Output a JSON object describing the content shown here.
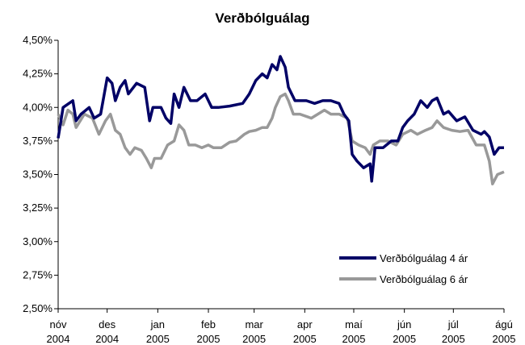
{
  "chart_data": {
    "type": "line",
    "title": "Verðbólguálag",
    "xlim": [
      0,
      273
    ],
    "xticks": [
      {
        "value": 0,
        "label": "nóv 2004"
      },
      {
        "value": 30,
        "label": "des 2004"
      },
      {
        "value": 61,
        "label": "jan 2005"
      },
      {
        "value": 92,
        "label": "feb 2005"
      },
      {
        "value": 120,
        "label": "mar 2005"
      },
      {
        "value": 151,
        "label": "apr 2005"
      },
      {
        "value": 181,
        "label": "maí 2005"
      },
      {
        "value": 212,
        "label": "jún 2005"
      },
      {
        "value": 242,
        "label": "júl 2005"
      },
      {
        "value": 273,
        "label": "ágú 2005"
      }
    ],
    "ylim": [
      2.5,
      4.5
    ],
    "yticks": [
      {
        "value": 2.5,
        "label": "2,50%"
      },
      {
        "value": 2.75,
        "label": "2,75%"
      },
      {
        "value": 3.0,
        "label": "3,00%"
      },
      {
        "value": 3.25,
        "label": "3,25%"
      },
      {
        "value": 3.5,
        "label": "3,50%"
      },
      {
        "value": 3.75,
        "label": "3,75%"
      },
      {
        "value": 4.0,
        "label": "4,00%"
      },
      {
        "value": 4.25,
        "label": "4,25%"
      },
      {
        "value": 4.5,
        "label": "4,50%"
      }
    ],
    "grid": false,
    "legend": "lower right",
    "series": [
      {
        "name": "Verðbólguálag 4 ár",
        "color": "#000066",
        "x": [
          0,
          3,
          9,
          11,
          14,
          19,
          22,
          26,
          30,
          33,
          35,
          38,
          41,
          43,
          48,
          53,
          56,
          58,
          63,
          66,
          69,
          71,
          74,
          77,
          81,
          85,
          90,
          94,
          98,
          105,
          113,
          117,
          121,
          125,
          128,
          131,
          134,
          136,
          139,
          141,
          145,
          152,
          157,
          162,
          167,
          172,
          175,
          178,
          180,
          183,
          187,
          191,
          192,
          194,
          199,
          204,
          208,
          211,
          214,
          218,
          222,
          226,
          229,
          232,
          236,
          239,
          244,
          249,
          254,
          259,
          261,
          264,
          267,
          270,
          273
        ],
        "values": [
          3.77,
          4.0,
          4.05,
          3.9,
          3.95,
          4.0,
          3.92,
          3.95,
          4.22,
          4.18,
          4.05,
          4.15,
          4.2,
          4.1,
          4.18,
          4.15,
          3.9,
          4.0,
          4.0,
          3.92,
          3.88,
          4.1,
          4.0,
          4.15,
          4.05,
          4.05,
          4.1,
          4.0,
          4.0,
          4.01,
          4.03,
          4.1,
          4.2,
          4.25,
          4.22,
          4.32,
          4.28,
          4.38,
          4.3,
          4.15,
          4.05,
          4.05,
          4.03,
          4.05,
          4.05,
          4.03,
          3.95,
          3.9,
          3.65,
          3.6,
          3.55,
          3.58,
          3.45,
          3.7,
          3.7,
          3.75,
          3.75,
          3.85,
          3.9,
          3.95,
          4.05,
          4.0,
          4.05,
          4.07,
          3.95,
          3.97,
          3.9,
          3.93,
          3.83,
          3.8,
          3.82,
          3.78,
          3.65,
          3.7,
          3.7
        ]
      },
      {
        "name": "Verðbólguálag 6 ár",
        "color": "#999999",
        "x": [
          0,
          3,
          6,
          9,
          11,
          16,
          21,
          25,
          29,
          32,
          35,
          38,
          41,
          44,
          47,
          51,
          54,
          57,
          59,
          63,
          67,
          71,
          74,
          77,
          80,
          84,
          88,
          92,
          95,
          100,
          105,
          109,
          114,
          117,
          121,
          125,
          128,
          131,
          133,
          136,
          139,
          141,
          144,
          148,
          155,
          159,
          163,
          167,
          172,
          177,
          180,
          184,
          188,
          191,
          193,
          197,
          202,
          207,
          211,
          216,
          220,
          225,
          229,
          232,
          236,
          241,
          246,
          251,
          256,
          261,
          264,
          266,
          269,
          273
        ],
        "values": [
          3.95,
          3.87,
          3.98,
          3.95,
          3.85,
          3.95,
          3.92,
          3.8,
          3.9,
          3.95,
          3.83,
          3.8,
          3.7,
          3.65,
          3.7,
          3.68,
          3.62,
          3.55,
          3.62,
          3.62,
          3.72,
          3.75,
          3.87,
          3.83,
          3.72,
          3.72,
          3.7,
          3.72,
          3.7,
          3.7,
          3.74,
          3.75,
          3.8,
          3.82,
          3.83,
          3.85,
          3.85,
          3.92,
          4.0,
          4.08,
          4.1,
          4.05,
          3.95,
          3.95,
          3.92,
          3.95,
          3.98,
          3.95,
          3.95,
          3.92,
          3.75,
          3.72,
          3.7,
          3.65,
          3.72,
          3.75,
          3.75,
          3.72,
          3.8,
          3.83,
          3.8,
          3.83,
          3.85,
          3.9,
          3.85,
          3.83,
          3.82,
          3.83,
          3.72,
          3.72,
          3.6,
          3.43,
          3.5,
          3.52
        ]
      }
    ]
  }
}
